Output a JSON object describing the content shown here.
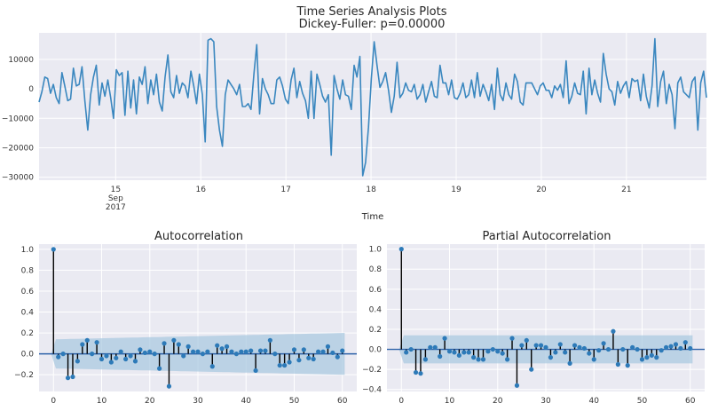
{
  "chart_data": [
    {
      "type": "line",
      "title": "Time Series Analysis Plots",
      "subtitle": "Dickey-Fuller: p=0.00000",
      "xlabel": "Time",
      "ylabel": "",
      "ylim": [
        -31000,
        19000
      ],
      "yticks": [
        10000,
        0,
        -10000,
        -20000,
        -30000
      ],
      "yticklabels": [
        "10000",
        "0",
        "−10000",
        "−20000",
        "−30000"
      ],
      "xticks": [
        {
          "day": 15,
          "label": "15",
          "sub1": "Sep",
          "sub2": "2017"
        },
        {
          "day": 16,
          "label": "16"
        },
        {
          "day": 17,
          "label": "17"
        },
        {
          "day": 18,
          "label": "18"
        },
        {
          "day": 19,
          "label": "19"
        },
        {
          "day": 20,
          "label": "20"
        },
        {
          "day": 21,
          "label": "21"
        }
      ],
      "x_start_day": 14.1,
      "x_end_day": 21.94,
      "grid": true,
      "color": "#3a87bf",
      "values": [
        -4500,
        -1000,
        4000,
        3500,
        -1500,
        1500,
        -3000,
        -5000,
        5500,
        1000,
        -4000,
        -3500,
        7000,
        1000,
        1500,
        7500,
        -4000,
        -14000,
        -2000,
        4000,
        8000,
        -5500,
        2000,
        -2500,
        3000,
        -3000,
        -10000,
        6500,
        4500,
        5500,
        -9000,
        6000,
        -6500,
        3000,
        -8500,
        4000,
        1500,
        7500,
        -5000,
        3000,
        -2000,
        5000,
        -4500,
        -7500,
        4000,
        11500,
        -1000,
        -3000,
        4500,
        -1500,
        2000,
        1000,
        -3000,
        6000,
        1000,
        -5000,
        5000,
        -2000,
        -18000,
        16500,
        17000,
        16000,
        -6000,
        -14000,
        -19500,
        -2000,
        3000,
        1500,
        0,
        -2000,
        1500,
        -6000,
        -6000,
        -5000,
        -7000,
        5000,
        15000,
        -8500,
        3500,
        0,
        -2000,
        -5000,
        -5000,
        3000,
        4000,
        1000,
        -3500,
        -5000,
        3000,
        7000,
        -3000,
        2500,
        -1500,
        -4000,
        -10000,
        6000,
        -10000,
        5000,
        1500,
        -2500,
        -4500,
        -2000,
        -22500,
        4500,
        0,
        -3500,
        3000,
        -2000,
        -2500,
        -7000,
        8000,
        4000,
        11000,
        -29500,
        -25000,
        -13000,
        3500,
        16000,
        8000,
        500,
        2500,
        5500,
        -500,
        -8000,
        -2500,
        9000,
        -3000,
        -1500,
        2000,
        -500,
        -1000,
        1500,
        -3500,
        -2000,
        1500,
        -4500,
        -1000,
        2500,
        -2500,
        -3000,
        8000,
        2000,
        2000,
        -2000,
        3000,
        -3000,
        -3500,
        -1500,
        2000,
        -3000,
        -2000,
        3000,
        -3000,
        5500,
        -2500,
        1500,
        -1000,
        -4000,
        1500,
        -7000,
        7000,
        -2000,
        -4000,
        2000,
        -2000,
        -3500,
        5000,
        2500,
        -4500,
        -5500,
        2000,
        2000,
        2000,
        0,
        -2000,
        1000,
        2000,
        -500,
        -500,
        -3000,
        1000,
        -500,
        1500,
        -3000,
        9500,
        -5000,
        -2500,
        2000,
        -1500,
        -2000,
        6000,
        -8500,
        7000,
        -2000,
        3000,
        -1500,
        -4500,
        12000,
        5000,
        0,
        -1000,
        -5500,
        2500,
        -1500,
        1000,
        2500,
        -3000,
        3500,
        2500,
        3000,
        -4000,
        5000,
        -2500,
        -6500,
        1000,
        17000,
        -6000,
        2500,
        6000,
        -5000,
        1500,
        -2000,
        -13500,
        2000,
        4000,
        -1000,
        -2000,
        -3000,
        2500,
        4000,
        -14000,
        2000,
        6000,
        -3000
      ]
    },
    {
      "type": "scatter",
      "subtype": "stem",
      "title": "Autocorrelation",
      "xlabel": "",
      "ylabel": "",
      "xlim": [
        -3,
        63
      ],
      "ylim": [
        -0.36,
        1.05
      ],
      "xticks": [
        0,
        10,
        20,
        30,
        40,
        50,
        60
      ],
      "yticks": [
        1.0,
        0.8,
        0.6,
        0.4,
        0.2,
        0.0,
        -0.2
      ],
      "yticklabels": [
        "1.0",
        "0.8",
        "0.6",
        "0.4",
        "0.2",
        "0.0",
        "−0.2"
      ],
      "confint_band": {
        "start": [
          0.0,
          0.0
        ],
        "lag1": 0.14,
        "lag60": 0.2
      },
      "color": "#2d7ab8",
      "values": [
        1.0,
        -0.03,
        0.0,
        -0.23,
        -0.22,
        -0.07,
        0.09,
        0.13,
        0.0,
        0.11,
        -0.05,
        -0.02,
        -0.08,
        -0.04,
        0.02,
        -0.05,
        -0.02,
        -0.07,
        0.04,
        0.01,
        0.02,
        0.0,
        -0.14,
        0.1,
        -0.31,
        0.13,
        0.09,
        -0.02,
        0.07,
        0.02,
        0.02,
        0.0,
        0.02,
        -0.12,
        0.08,
        0.05,
        0.07,
        0.02,
        0.0,
        0.02,
        0.02,
        0.03,
        -0.16,
        0.03,
        0.03,
        0.13,
        0.0,
        -0.11,
        -0.11,
        -0.08,
        0.04,
        -0.06,
        0.04,
        -0.04,
        -0.05,
        0.02,
        0.02,
        0.07,
        0.01,
        -0.03,
        0.03
      ]
    },
    {
      "type": "scatter",
      "subtype": "stem",
      "title": "Partial Autocorrelation",
      "xlabel": "",
      "ylabel": "",
      "xlim": [
        -3,
        63
      ],
      "ylim": [
        -0.42,
        1.05
      ],
      "xticks": [
        0,
        10,
        20,
        30,
        40,
        50,
        60
      ],
      "yticks": [
        1.0,
        0.8,
        0.6,
        0.4,
        0.2,
        0.0,
        -0.2,
        -0.4
      ],
      "yticklabels": [
        "1.0",
        "0.8",
        "0.6",
        "0.4",
        "0.2",
        "0.0",
        "−0.2",
        "−0.4"
      ],
      "confint_band": {
        "start": [
          0.0,
          0.0
        ],
        "lag1": 0.14,
        "lag60": 0.14
      },
      "color": "#2d7ab8",
      "values": [
        1.0,
        -0.03,
        0.0,
        -0.23,
        -0.24,
        -0.1,
        0.02,
        0.02,
        -0.07,
        0.11,
        -0.02,
        -0.03,
        -0.06,
        -0.03,
        -0.03,
        -0.08,
        -0.1,
        -0.1,
        -0.02,
        0.0,
        -0.02,
        -0.04,
        -0.1,
        0.11,
        -0.36,
        0.04,
        0.09,
        -0.2,
        0.04,
        0.04,
        0.02,
        -0.08,
        -0.03,
        0.05,
        -0.03,
        -0.14,
        0.04,
        0.02,
        0.01,
        -0.04,
        -0.1,
        -0.01,
        0.06,
        0.0,
        0.18,
        -0.15,
        0.0,
        -0.16,
        0.02,
        0.0,
        -0.1,
        -0.08,
        -0.06,
        -0.08,
        -0.01,
        0.02,
        0.03,
        0.05,
        0.01,
        0.07,
        0.01
      ]
    }
  ]
}
